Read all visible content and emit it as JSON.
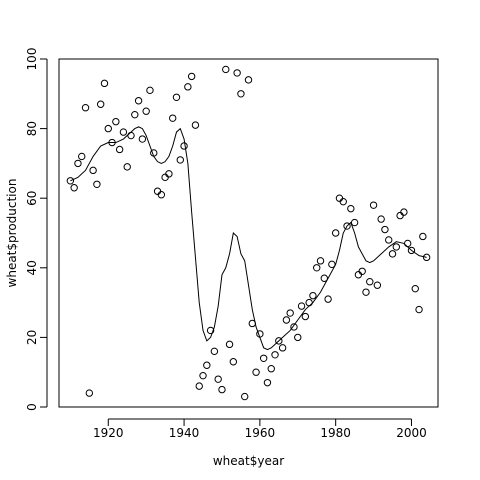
{
  "chart_data": {
    "type": "scatter",
    "title": "",
    "xlabel": "wheat$year",
    "ylabel": "wheat$production",
    "xlim": [
      1907,
      2007
    ],
    "ylim": [
      0,
      100
    ],
    "xticks": [
      1920,
      1940,
      1960,
      1980,
      2000
    ],
    "yticks": [
      0,
      20,
      40,
      60,
      80,
      100
    ],
    "grid": false,
    "legend": "none",
    "colors": {
      "points": "#000000",
      "line": "#000000",
      "frame": "#000000"
    },
    "series": [
      {
        "type": "scatter",
        "marker": "open-circle",
        "x": [
          1910,
          1911,
          1912,
          1913,
          1914,
          1915,
          1916,
          1917,
          1918,
          1919,
          1920,
          1921,
          1922,
          1923,
          1924,
          1925,
          1926,
          1927,
          1928,
          1929,
          1930,
          1931,
          1932,
          1933,
          1934,
          1935,
          1936,
          1937,
          1938,
          1939,
          1940,
          1941,
          1942,
          1943,
          1944,
          1945,
          1946,
          1947,
          1948,
          1949,
          1950,
          1951,
          1952,
          1953,
          1954,
          1955,
          1956,
          1957,
          1958,
          1959,
          1960,
          1961,
          1962,
          1963,
          1964,
          1965,
          1966,
          1967,
          1968,
          1969,
          1970,
          1971,
          1972,
          1973,
          1974,
          1975,
          1976,
          1977,
          1978,
          1979,
          1980,
          1981,
          1982,
          1983,
          1984,
          1985,
          1986,
          1987,
          1988,
          1989,
          1990,
          1991,
          1992,
          1993,
          1994,
          1995,
          1996,
          1997,
          1998,
          1999,
          2000,
          2001,
          2002,
          2003,
          2004
        ],
        "y": [
          65,
          63,
          70,
          72,
          86,
          4,
          68,
          64,
          87,
          93,
          80,
          76,
          82,
          74,
          79,
          69,
          78,
          84,
          88,
          77,
          85,
          91,
          73,
          62,
          61,
          66,
          67,
          83,
          89,
          71,
          75,
          92,
          95,
          81,
          6,
          9,
          12,
          22,
          16,
          8,
          5,
          97,
          18,
          13,
          96,
          90,
          3,
          94,
          24,
          10,
          21,
          14,
          7,
          11,
          15,
          19,
          17,
          25,
          27,
          23,
          20,
          29,
          26,
          30,
          32,
          40,
          42,
          37,
          31,
          41,
          50,
          60,
          59,
          52,
          57,
          53,
          38,
          39,
          33,
          36,
          58,
          35,
          54,
          51,
          48,
          44,
          46,
          55,
          56,
          47,
          45,
          34,
          28,
          49,
          43
        ]
      },
      {
        "type": "line",
        "name": "",
        "x": [
          1910,
          1912,
          1914,
          1916,
          1918,
          1920,
          1922,
          1924,
          1926,
          1927,
          1928,
          1929,
          1930,
          1931,
          1932,
          1933,
          1934,
          1935,
          1936,
          1937,
          1938,
          1939,
          1940,
          1941,
          1942,
          1943,
          1944,
          1945,
          1946,
          1947,
          1948,
          1949,
          1950,
          1951,
          1952,
          1953,
          1954,
          1955,
          1956,
          1957,
          1958,
          1959,
          1960,
          1961,
          1962,
          1963,
          1964,
          1966,
          1968,
          1970,
          1972,
          1974,
          1976,
          1978,
          1980,
          1981,
          1982,
          1983,
          1984,
          1985,
          1986,
          1987,
          1988,
          1989,
          1990,
          1992,
          1994,
          1996,
          1998,
          2000,
          2002,
          2004
        ],
        "y": [
          65,
          66,
          68,
          72,
          75,
          76,
          76,
          77,
          79,
          80,
          80.5,
          80,
          78,
          75,
          72,
          70.5,
          70,
          70.5,
          72,
          75,
          79,
          80,
          77,
          70,
          56,
          43,
          30,
          22,
          19,
          20,
          23,
          29,
          38,
          40,
          44,
          50,
          49,
          44,
          42,
          35,
          28,
          23,
          20,
          17,
          16.5,
          17,
          18,
          20,
          22,
          25,
          28,
          30,
          33,
          37,
          41,
          45,
          50,
          52,
          53,
          50,
          46,
          44,
          42,
          41.5,
          42,
          44,
          46,
          47.5,
          47,
          45,
          43.5,
          43
        ]
      }
    ]
  }
}
